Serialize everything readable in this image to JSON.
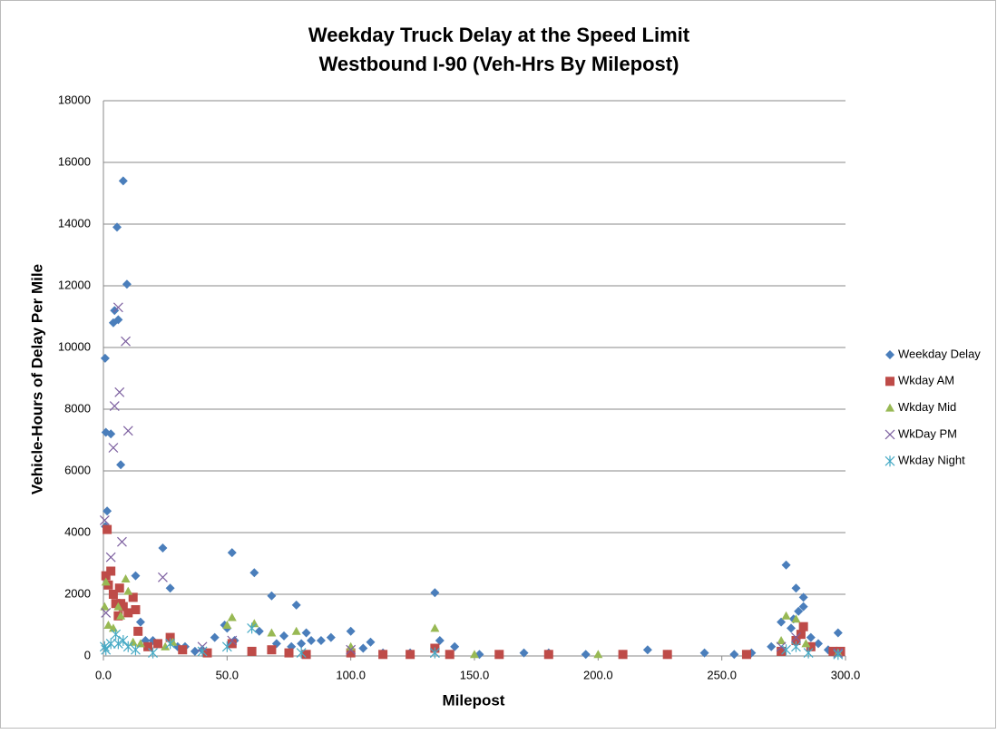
{
  "chart_data": {
    "type": "scatter",
    "title": "Weekday Truck Delay at the Speed Limit",
    "subtitle": "Westbound I-90 (Veh-Hrs By Milepost)",
    "x_label": "Milepost",
    "y_label": "Vehicle-Hours of Delay Per Mile",
    "xlim": [
      0,
      300
    ],
    "ylim": [
      0,
      18000
    ],
    "xticks": [
      {
        "value": 0,
        "label": "0.0"
      },
      {
        "value": 50,
        "label": "50.0"
      },
      {
        "value": 100,
        "label": "100.0"
      },
      {
        "value": 150,
        "label": "150.0"
      },
      {
        "value": 200,
        "label": "200.0"
      },
      {
        "value": 250,
        "label": "250.0"
      },
      {
        "value": 300,
        "label": "300.0"
      }
    ],
    "yticks": [
      0,
      2000,
      4000,
      6000,
      8000,
      10000,
      12000,
      14000,
      16000,
      18000
    ],
    "grid": true,
    "legend": "right",
    "series": [
      {
        "name": "Weekday Delay",
        "color": "#4a7ebb",
        "marker": "diamond",
        "x": [
          0.7,
          1,
          1.5,
          0.8,
          3,
          4,
          4.5,
          5.5,
          6,
          7,
          8,
          9.5,
          13,
          15,
          17,
          20,
          24,
          27,
          30,
          33,
          37,
          40,
          45,
          49,
          50,
          52,
          53,
          61,
          63,
          68,
          70,
          73,
          76,
          78,
          80,
          82,
          84,
          88,
          92,
          100,
          105,
          108,
          113,
          124,
          134,
          136,
          142,
          152,
          160,
          170,
          180,
          195,
          210,
          220,
          228,
          243,
          255,
          262,
          270,
          274,
          276,
          278,
          279,
          280,
          281,
          283,
          283,
          286,
          289,
          293,
          297,
          298
        ],
        "values": [
          9650,
          7250,
          4700,
          4200,
          7200,
          10800,
          11200,
          13900,
          10900,
          6200,
          15400,
          12050,
          2600,
          1100,
          500,
          500,
          3500,
          2200,
          300,
          300,
          150,
          200,
          600,
          1000,
          900,
          3350,
          500,
          2700,
          800,
          1950,
          400,
          650,
          300,
          1650,
          400,
          750,
          500,
          500,
          600,
          800,
          250,
          450,
          100,
          100,
          2050,
          500,
          300,
          50,
          50,
          100,
          100,
          50,
          50,
          200,
          50,
          100,
          50,
          100,
          300,
          1100,
          2950,
          900,
          1200,
          2200,
          1450,
          1600,
          1900,
          600,
          400,
          200,
          750,
          100
        ]
      },
      {
        "name": "Wkday AM",
        "color": "#be4b48",
        "marker": "square",
        "x": [
          1,
          1.5,
          2,
          3,
          4,
          5,
          6,
          6.5,
          7,
          8,
          10,
          12,
          13,
          14,
          18,
          22,
          27,
          32,
          42,
          52,
          60,
          68,
          75,
          82,
          100,
          113,
          124,
          134,
          140,
          160,
          180,
          210,
          228,
          260,
          274,
          280,
          282,
          283,
          286,
          295,
          298
        ],
        "values": [
          2600,
          4100,
          2300,
          2750,
          2000,
          1700,
          1300,
          2200,
          1700,
          1600,
          1400,
          1900,
          1500,
          800,
          300,
          400,
          600,
          200,
          100,
          400,
          150,
          200,
          100,
          50,
          100,
          50,
          50,
          250,
          50,
          50,
          50,
          50,
          50,
          50,
          150,
          500,
          700,
          950,
          300,
          150,
          150
        ]
      },
      {
        "name": "Wkday Mid",
        "color": "#98b954",
        "marker": "triangle",
        "x": [
          0.5,
          1,
          2,
          4,
          6,
          7,
          9,
          10,
          12,
          15,
          25,
          28,
          50,
          52,
          61,
          68,
          78,
          100,
          134,
          150,
          200,
          274,
          276,
          280,
          284,
          297
        ],
        "values": [
          1600,
          2400,
          1000,
          900,
          1600,
          1300,
          2500,
          2100,
          450,
          400,
          300,
          450,
          1000,
          1250,
          1050,
          750,
          800,
          300,
          900,
          50,
          50,
          500,
          1300,
          1200,
          400,
          100
        ]
      },
      {
        "name": "WkDay PM",
        "color": "#7d60a0",
        "marker": "x",
        "x": [
          0.5,
          1,
          3,
          4,
          4.5,
          6,
          6.5,
          7.5,
          9,
          10,
          24,
          40,
          52,
          100,
          134,
          274,
          280,
          297
        ],
        "values": [
          4400,
          1400,
          3200,
          6750,
          8100,
          11300,
          8550,
          3700,
          10200,
          7300,
          2550,
          300,
          500,
          200,
          100,
          300,
          600,
          100
        ]
      },
      {
        "name": "Wkday Night",
        "color": "#46aac5",
        "marker": "star",
        "x": [
          0.5,
          1,
          3,
          5,
          6,
          8,
          10,
          13,
          20,
          27,
          40,
          50,
          60,
          80,
          134,
          276,
          280,
          285,
          297
        ],
        "values": [
          300,
          200,
          400,
          700,
          400,
          500,
          300,
          200,
          100,
          400,
          150,
          300,
          900,
          100,
          100,
          200,
          300,
          100,
          50
        ]
      }
    ]
  }
}
